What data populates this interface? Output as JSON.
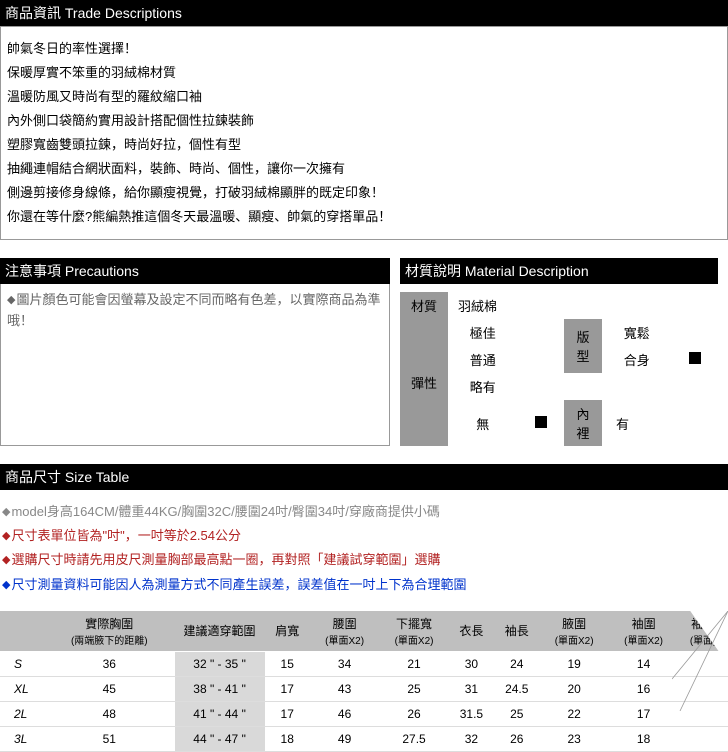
{
  "trade": {
    "header": "商品資訊 Trade Descriptions",
    "lines": [
      "帥氣冬日的率性選擇！",
      "保暖厚實不笨重的羽絨棉材質",
      "溫暖防風又時尚有型的羅紋縮口袖",
      "內外側口袋簡約實用設計搭配個性拉鍊裝飾",
      "塑膠寬齒雙頭拉鍊，時尚好拉，個性有型",
      "抽繩連帽結合網狀面料，裝飾、時尚、個性，讓你一次擁有",
      "側邊剪接修身線條，給你顯瘦視覺，打破羽絨棉顯胖的既定印象！",
      "你還在等什麼?熊編熱推這個冬天最溫暖、顯瘦、帥氣的穿搭單品！"
    ]
  },
  "precautions": {
    "header": "注意事項 Precautions",
    "text": "圖片顏色可能會因螢幕及設定不同而略有色差，以實際商品為準哦！"
  },
  "material": {
    "header": "材質說明 Material Description",
    "mat_label": "材質",
    "mat_value": "羽絨棉",
    "elastic_label": "彈性",
    "elastic_options": [
      "極佳",
      "普通",
      "略有",
      "無"
    ],
    "elastic_selected": "無",
    "fit_label": "版型",
    "fit_options": [
      "寬鬆",
      "合身"
    ],
    "fit_selected": "合身",
    "lining_label": "內裡",
    "lining_value": "有"
  },
  "size": {
    "header": "商品尺寸 Size Table",
    "notes": [
      {
        "cls": "note-gray",
        "text": "model身高164CM/體重44KG/胸圍32C/腰圍24吋/臀圍34吋/穿廠商提供小碼"
      },
      {
        "cls": "note-red",
        "text": "尺寸表單位皆為\"吋\"，一吋等於2.54公分"
      },
      {
        "cls": "note-red",
        "text": "選購尺寸時請先用皮尺測量胸部最高點一圈，再對照「建議試穿範圍」選購"
      },
      {
        "cls": "note-blue",
        "text": "尺寸測量資料可能因人為測量方式不同產生誤差，誤差值在一吋上下為合理範圍"
      }
    ],
    "columns": [
      {
        "label": "",
        "sub": ""
      },
      {
        "label": "實際胸圍",
        "sub": "(兩端腋下的距離)"
      },
      {
        "label": "建議適穿範圍",
        "sub": ""
      },
      {
        "label": "肩寬",
        "sub": ""
      },
      {
        "label": "腰圍",
        "sub": "(單面X2)"
      },
      {
        "label": "下擺寬",
        "sub": "(單面X2)"
      },
      {
        "label": "衣長",
        "sub": ""
      },
      {
        "label": "袖長",
        "sub": ""
      },
      {
        "label": "腋圍",
        "sub": "(單面X2)"
      },
      {
        "label": "袖圍",
        "sub": "(單面X2)"
      },
      {
        "label": "袖口",
        "sub": "(單面)"
      }
    ],
    "rows": [
      {
        "size": "S",
        "chest": "36",
        "range": "32 \" - 35 \"",
        "shoulder": "15",
        "waist": "34",
        "hem": "21",
        "length": "30",
        "sleeve": "24",
        "armhole": "19",
        "arm": "14",
        "cuff": ""
      },
      {
        "size": "XL",
        "chest": "45",
        "range": "38 \" - 41 \"",
        "shoulder": "17",
        "waist": "43",
        "hem": "25",
        "length": "31",
        "sleeve": "24.5",
        "armhole": "20",
        "arm": "16",
        "cuff": ""
      },
      {
        "size": "2L",
        "chest": "48",
        "range": "41 \" - 44 \"",
        "shoulder": "17",
        "waist": "46",
        "hem": "26",
        "length": "31.5",
        "sleeve": "25",
        "armhole": "22",
        "arm": "17",
        "cuff": ""
      },
      {
        "size": "3L",
        "chest": "51",
        "range": "44 \" - 47 \"",
        "shoulder": "18",
        "waist": "49",
        "hem": "27.5",
        "length": "32",
        "sleeve": "26",
        "armhole": "23",
        "arm": "18",
        "cuff": ""
      }
    ]
  }
}
